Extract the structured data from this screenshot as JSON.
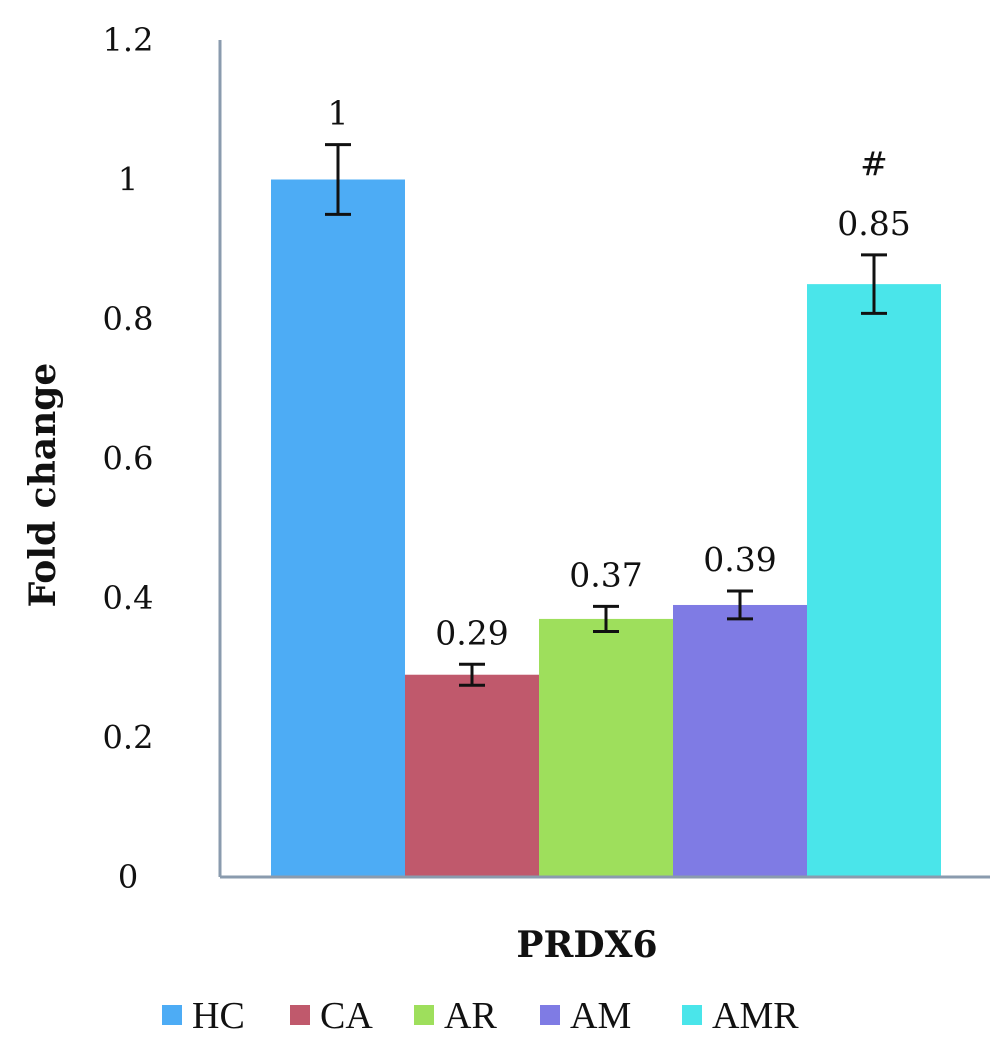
{
  "chart_data": {
    "type": "bar",
    "categories": [
      "PRDX6"
    ],
    "xlabel": "PRDX6",
    "ylabel": "Fold change",
    "ylim": [
      0,
      1.2
    ],
    "yticks": [
      0,
      0.2,
      0.4,
      0.6,
      0.8,
      1,
      1.2
    ],
    "ytick_labels": [
      "0",
      "0.2",
      "0.4",
      "0.6",
      "0.8",
      "1",
      "1.2"
    ],
    "grid": false,
    "legend_position": "bottom",
    "series": [
      {
        "name": "HC",
        "value": 1.0,
        "error": 0.05,
        "label": "1",
        "annotation": "",
        "color": "#4DACF5"
      },
      {
        "name": "CA",
        "value": 0.29,
        "error": 0.015,
        "label": "0.29",
        "annotation": "",
        "color": "#C0596C"
      },
      {
        "name": "AR",
        "value": 0.37,
        "error": 0.018,
        "label": "0.37",
        "annotation": "",
        "color": "#9EDF5C"
      },
      {
        "name": "AM",
        "value": 0.39,
        "error": 0.02,
        "label": "0.39",
        "annotation": "",
        "color": "#7F7BE4"
      },
      {
        "name": "AMR",
        "value": 0.85,
        "error": 0.042,
        "label": "0.85",
        "annotation": "#",
        "color": "#4AE5EA"
      }
    ]
  }
}
